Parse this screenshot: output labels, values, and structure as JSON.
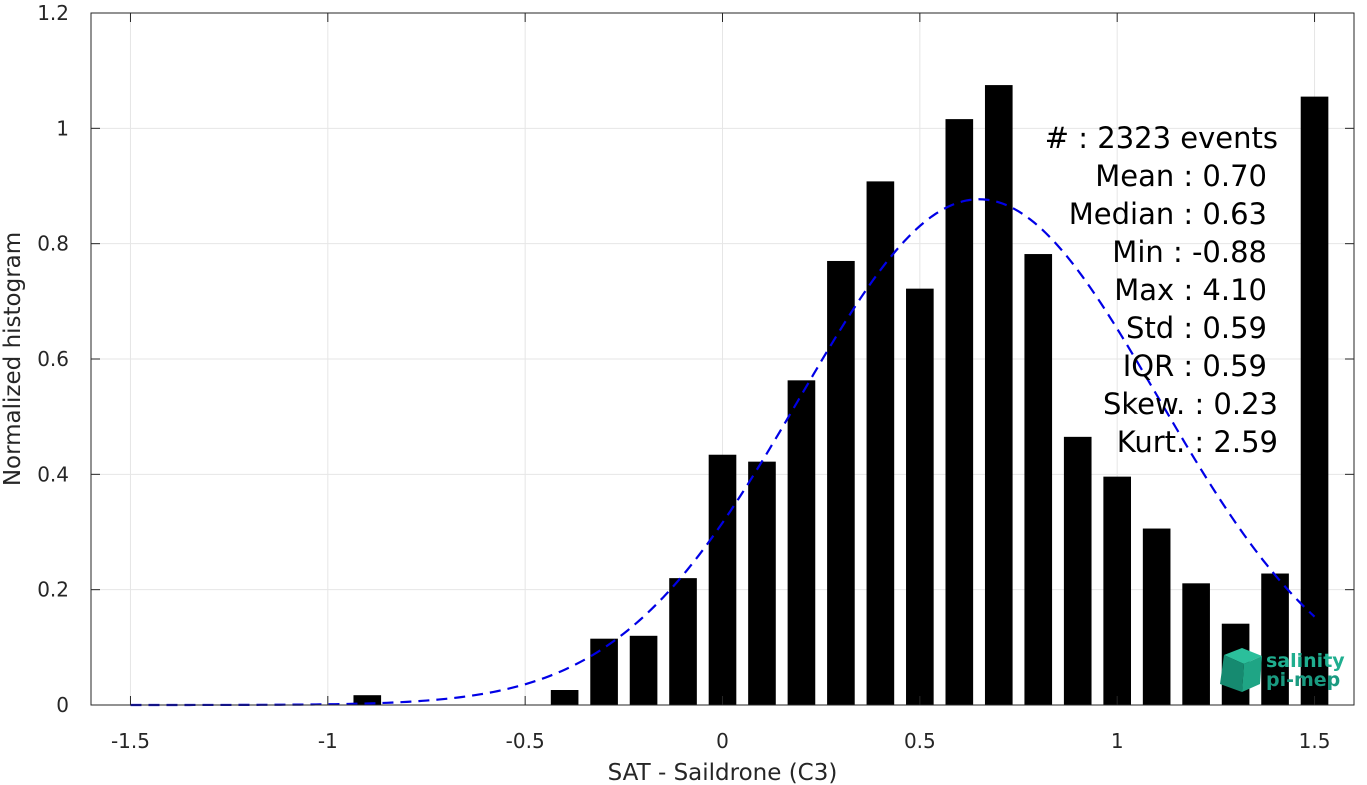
{
  "chart_data": {
    "type": "bar",
    "xlabel": "SAT - Saildrone (C3)",
    "ylabel": "Normalized histogram",
    "xlim": [
      -1.6,
      1.6
    ],
    "ylim": [
      0,
      1.2
    ],
    "xticks": [
      -1.5,
      -1,
      -0.5,
      0,
      0.5,
      1,
      1.5
    ],
    "xtick_labels": [
      "-1.5",
      "-1",
      "-0.5",
      "0",
      "0.5",
      "1",
      "1.5"
    ],
    "yticks": [
      0,
      0.2,
      0.4,
      0.6,
      0.8,
      1,
      1.2
    ],
    "ytick_labels": [
      "0",
      "0.2",
      "0.4",
      "0.6",
      "0.8",
      "1",
      "1.2"
    ],
    "grid": true,
    "bar_color": "#000000",
    "bar_width": 0.07,
    "bars": [
      {
        "x": -1.5,
        "y": 0.0
      },
      {
        "x": -1.4,
        "y": 0.0
      },
      {
        "x": -1.3,
        "y": 0.0
      },
      {
        "x": -1.2,
        "y": 0.0
      },
      {
        "x": -1.1,
        "y": 0.0
      },
      {
        "x": -1.0,
        "y": 0.0
      },
      {
        "x": -0.9,
        "y": 0.017
      },
      {
        "x": -0.8,
        "y": 0.0
      },
      {
        "x": -0.7,
        "y": 0.0
      },
      {
        "x": -0.6,
        "y": 0.0
      },
      {
        "x": -0.5,
        "y": 0.0
      },
      {
        "x": -0.4,
        "y": 0.026
      },
      {
        "x": -0.3,
        "y": 0.115
      },
      {
        "x": -0.2,
        "y": 0.12
      },
      {
        "x": -0.1,
        "y": 0.22
      },
      {
        "x": 0.0,
        "y": 0.434
      },
      {
        "x": 0.1,
        "y": 0.422
      },
      {
        "x": 0.2,
        "y": 0.563
      },
      {
        "x": 0.3,
        "y": 0.77
      },
      {
        "x": 0.4,
        "y": 0.908
      },
      {
        "x": 0.5,
        "y": 0.722
      },
      {
        "x": 0.6,
        "y": 1.016
      },
      {
        "x": 0.7,
        "y": 1.075
      },
      {
        "x": 0.8,
        "y": 0.782
      },
      {
        "x": 0.9,
        "y": 0.465
      },
      {
        "x": 1.0,
        "y": 0.396
      },
      {
        "x": 1.1,
        "y": 0.306
      },
      {
        "x": 1.2,
        "y": 0.211
      },
      {
        "x": 1.3,
        "y": 0.141
      },
      {
        "x": 1.4,
        "y": 0.228
      },
      {
        "x": 1.5,
        "y": 1.055
      }
    ],
    "fit_curve": {
      "type": "gaussian",
      "style": "dashed",
      "color": "#0000e6",
      "mean": 0.65,
      "std": 0.455,
      "peak": 0.877,
      "x_range": [
        -1.5,
        1.5
      ]
    },
    "annotations": [
      "#  : 2323 events",
      "Mean : 0.70",
      "Median : 0.63",
      "Min : -0.88",
      "Max : 4.10",
      "Std : 0.59",
      "IQR : 0.59",
      "Skew. : 0.23",
      "Kurt. : 2.59"
    ]
  },
  "logo": {
    "line1": "salinity",
    "line2": "pi-mep",
    "color": "#1fae8f"
  }
}
